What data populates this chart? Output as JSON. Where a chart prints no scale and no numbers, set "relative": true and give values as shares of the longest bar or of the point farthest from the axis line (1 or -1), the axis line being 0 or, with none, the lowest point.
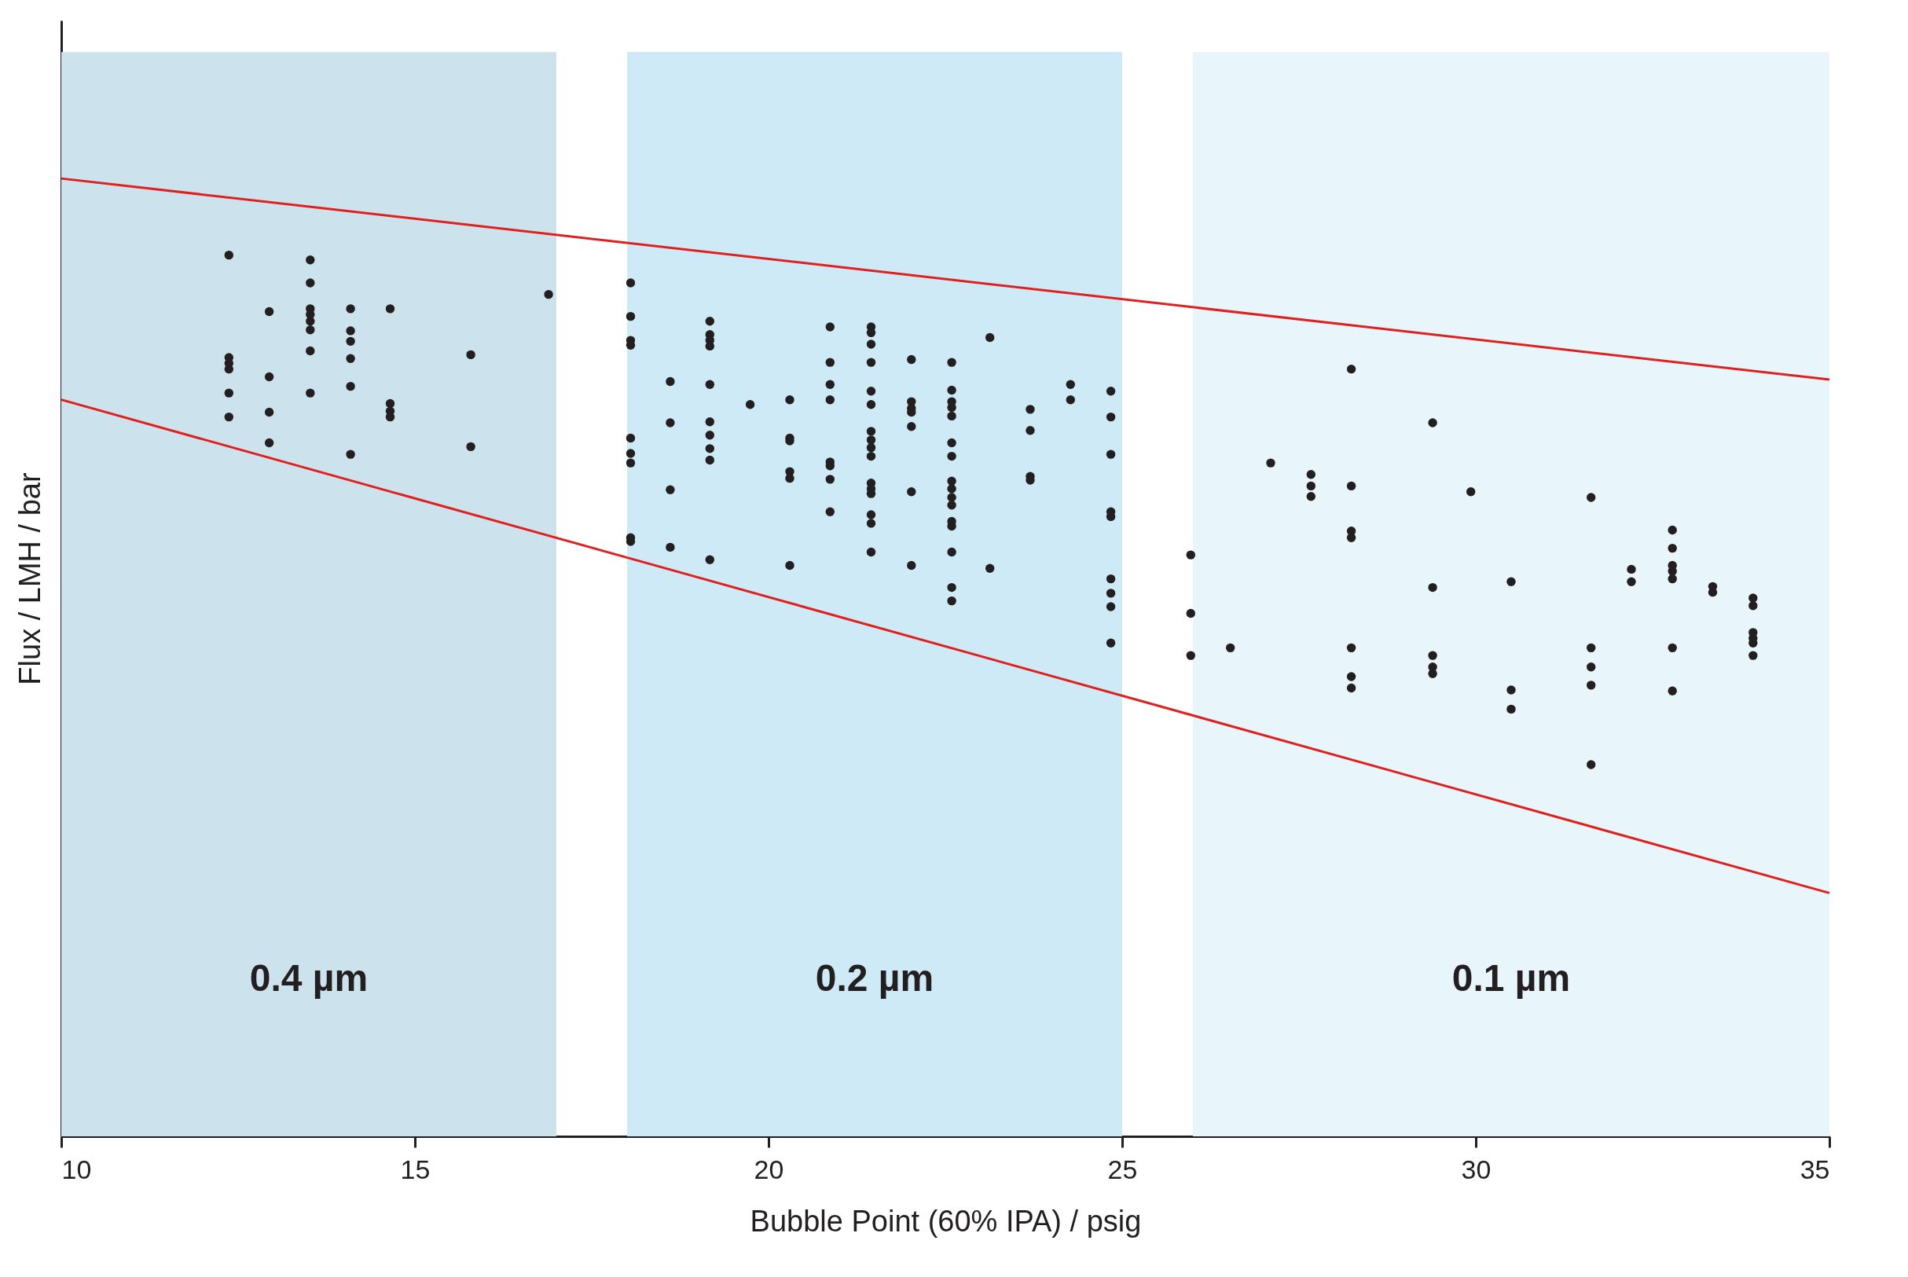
{
  "chart_data": {
    "type": "scatter",
    "relative": true,
    "xlabel": "Bubble Point (60% IPA) / psig",
    "ylabel": "Flux / LMH / bar",
    "xlim": [
      10,
      35
    ],
    "xticks": [
      10,
      15,
      20,
      25,
      30,
      35
    ],
    "tick_labels": "x",
    "grid": false,
    "bands": [
      {
        "axis": "x",
        "from": 10,
        "to": 17,
        "label": "0.4 µm",
        "color": "#cce3ed"
      },
      {
        "axis": "x",
        "from": 18,
        "to": 25,
        "label": "0.2 µm",
        "color": "#cdeaf6"
      },
      {
        "axis": "x",
        "from": 26,
        "to": 35,
        "label": "0.1 µm",
        "color": "#e8f5fb"
      }
    ],
    "series": [
      {
        "type": "line",
        "color": "#e0201e",
        "x": [
          10,
          35
        ],
        "values": [
          1.0,
          0.79
        ]
      },
      {
        "type": "line",
        "color": "#e0201e",
        "x": [
          10,
          35
        ],
        "values": [
          0.769,
          0.254
        ]
      },
      {
        "marker": "circle",
        "color": "#231f20",
        "x": [
          12.37,
          12.37,
          12.37,
          12.37,
          12.37,
          12.37,
          12.94,
          12.94,
          12.94,
          12.94,
          13.52,
          13.52,
          13.52,
          13.52,
          13.52,
          13.52,
          13.52,
          13.52,
          14.09,
          14.09,
          14.09,
          14.09,
          14.09,
          14.09,
          14.65,
          14.65,
          14.65,
          14.65,
          15.79,
          15.79,
          16.89,
          18.05,
          18.05,
          18.05,
          18.05,
          18.05,
          18.05,
          18.05,
          18.05,
          18.05,
          18.61,
          18.61,
          18.61,
          18.61,
          19.17,
          19.17,
          19.17,
          19.17,
          19.17,
          19.17,
          19.17,
          19.17,
          19.17,
          19.17,
          19.74,
          20.3,
          20.3,
          20.3,
          20.3,
          20.3,
          20.3,
          20.87,
          20.87,
          20.87,
          20.87,
          20.87,
          20.87,
          20.87,
          20.87,
          21.45,
          21.45,
          21.45,
          21.45,
          21.45,
          21.45,
          21.45,
          21.45,
          21.45,
          21.45,
          21.45,
          21.45,
          21.45,
          21.45,
          21.45,
          21.45,
          22.02,
          22.02,
          22.02,
          22.02,
          22.02,
          22.02,
          22.02,
          22.59,
          22.59,
          22.59,
          22.59,
          22.59,
          22.59,
          22.59,
          22.59,
          22.59,
          22.59,
          22.59,
          22.59,
          22.59,
          22.59,
          22.59,
          22.59,
          23.13,
          23.13,
          23.7,
          23.7,
          23.7,
          23.7,
          24.27,
          24.27,
          24.84,
          24.84,
          24.84,
          24.84,
          24.84,
          24.84,
          24.84,
          24.84,
          24.84,
          25.97,
          25.97,
          25.97,
          26.53,
          27.1,
          27.67,
          27.67,
          27.67,
          28.24,
          28.24,
          28.24,
          28.24,
          28.24,
          28.24,
          28.24,
          29.39,
          29.39,
          29.39,
          29.39,
          29.39,
          29.93,
          30.5,
          30.5,
          30.5,
          31.63,
          31.63,
          31.63,
          31.63,
          31.63,
          32.2,
          32.2,
          32.78,
          32.78,
          32.78,
          32.78,
          32.78,
          32.78,
          32.78,
          33.35,
          33.35,
          33.92,
          33.92,
          33.92,
          33.92,
          33.92,
          33.92
        ],
        "values": [
          0.92,
          0.813,
          0.807,
          0.801,
          0.776,
          0.751,
          0.861,
          0.793,
          0.756,
          0.724,
          0.915,
          0.891,
          0.864,
          0.858,
          0.851,
          0.842,
          0.82,
          0.776,
          0.864,
          0.841,
          0.83,
          0.812,
          0.783,
          0.712,
          0.864,
          0.765,
          0.757,
          0.751,
          0.816,
          0.72,
          0.879,
          0.891,
          0.856,
          0.831,
          0.826,
          0.729,
          0.713,
          0.703,
          0.625,
          0.621,
          0.788,
          0.745,
          0.675,
          0.615,
          0.851,
          0.837,
          0.831,
          0.825,
          0.785,
          0.746,
          0.732,
          0.718,
          0.706,
          0.602,
          0.764,
          0.769,
          0.729,
          0.726,
          0.694,
          0.687,
          0.596,
          0.845,
          0.808,
          0.785,
          0.769,
          0.704,
          0.7,
          0.686,
          0.652,
          0.845,
          0.839,
          0.827,
          0.808,
          0.778,
          0.764,
          0.736,
          0.727,
          0.719,
          0.71,
          0.682,
          0.676,
          0.671,
          0.649,
          0.64,
          0.61,
          0.811,
          0.767,
          0.76,
          0.756,
          0.741,
          0.673,
          0.596,
          0.808,
          0.779,
          0.767,
          0.761,
          0.752,
          0.724,
          0.71,
          0.684,
          0.676,
          0.667,
          0.659,
          0.642,
          0.637,
          0.61,
          0.573,
          0.559,
          0.834,
          0.593,
          0.759,
          0.737,
          0.689,
          0.685,
          0.785,
          0.769,
          0.778,
          0.751,
          0.712,
          0.652,
          0.647,
          0.582,
          0.567,
          0.553,
          0.515,
          0.607,
          0.546,
          0.502,
          0.51,
          0.703,
          0.691,
          0.679,
          0.668,
          0.801,
          0.679,
          0.632,
          0.625,
          0.51,
          0.48,
          0.468,
          0.745,
          0.573,
          0.502,
          0.49,
          0.483,
          0.673,
          0.579,
          0.466,
          0.446,
          0.667,
          0.51,
          0.49,
          0.471,
          0.388,
          0.592,
          0.579,
          0.633,
          0.614,
          0.596,
          0.59,
          0.582,
          0.51,
          0.465,
          0.574,
          0.568,
          0.562,
          0.554,
          0.526,
          0.52,
          0.515,
          0.502
        ]
      }
    ]
  }
}
